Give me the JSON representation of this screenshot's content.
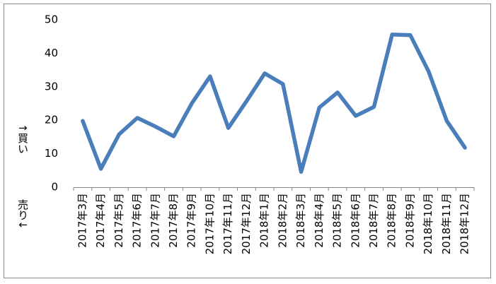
{
  "chart_data": {
    "type": "line",
    "annotations": [
      "↑買い",
      "売り↓"
    ],
    "categories": [
      "2017年3月",
      "2017年4月",
      "2017年5月",
      "2017年6月",
      "2017年7月",
      "2017年8月",
      "2017年9月",
      "2017年10月",
      "2017年11月",
      "2017年12月",
      "2018年1月",
      "2018年2月",
      "2018年3月",
      "2018年4月",
      "2018年5月",
      "2018年6月",
      "2018年7月",
      "2018年8月",
      "2018年9月",
      "2018年10月",
      "2018年11月",
      "2018年12月"
    ],
    "values": [
      19.8,
      5.5,
      15.8,
      20.7,
      18.1,
      15.2,
      25.1,
      33.1,
      17.7,
      25.7,
      34,
      30.8,
      4.6,
      23.8,
      28.3,
      21.3,
      24,
      45.6,
      45.4,
      34.6,
      19.8,
      11.8
    ],
    "color": "#4a7ebb",
    "ylim": [
      0,
      50
    ],
    "yticks": [
      0,
      10,
      20,
      30,
      40,
      50
    ],
    "grid": false
  }
}
